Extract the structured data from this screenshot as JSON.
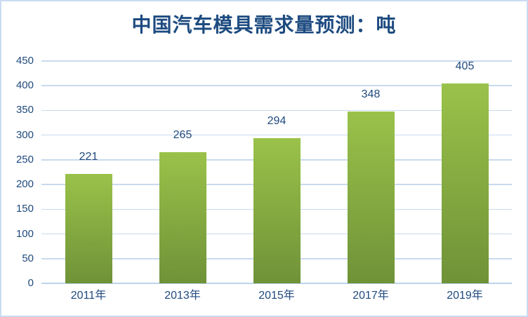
{
  "window": {
    "background": "#ffffff",
    "border_color": "#cbdcf2"
  },
  "chart_data": {
    "type": "bar",
    "title": "中国汽车模具需求量预测：吨",
    "categories": [
      "2011年",
      "2013年",
      "2015年",
      "2017年",
      "2019年"
    ],
    "values": [
      221,
      265,
      294,
      348,
      405
    ],
    "xlabel": "",
    "ylabel": "",
    "ylim": [
      0,
      450
    ],
    "ytick_step": 50,
    "ytick_labels": [
      "0",
      "50",
      "100",
      "150",
      "200",
      "250",
      "300",
      "350",
      "400",
      "450"
    ],
    "grid": true,
    "legend_position": "none",
    "data_labels": "outside-end",
    "colors": {
      "bar_gradient_top": "#9ac24a",
      "bar_gradient_bottom": "#6f9238",
      "gridline": "#c9daef",
      "axis_line": "#bed3ec",
      "tick_label": "#1f497d",
      "data_label": "#1f497d",
      "title": "#1d4b80"
    }
  }
}
